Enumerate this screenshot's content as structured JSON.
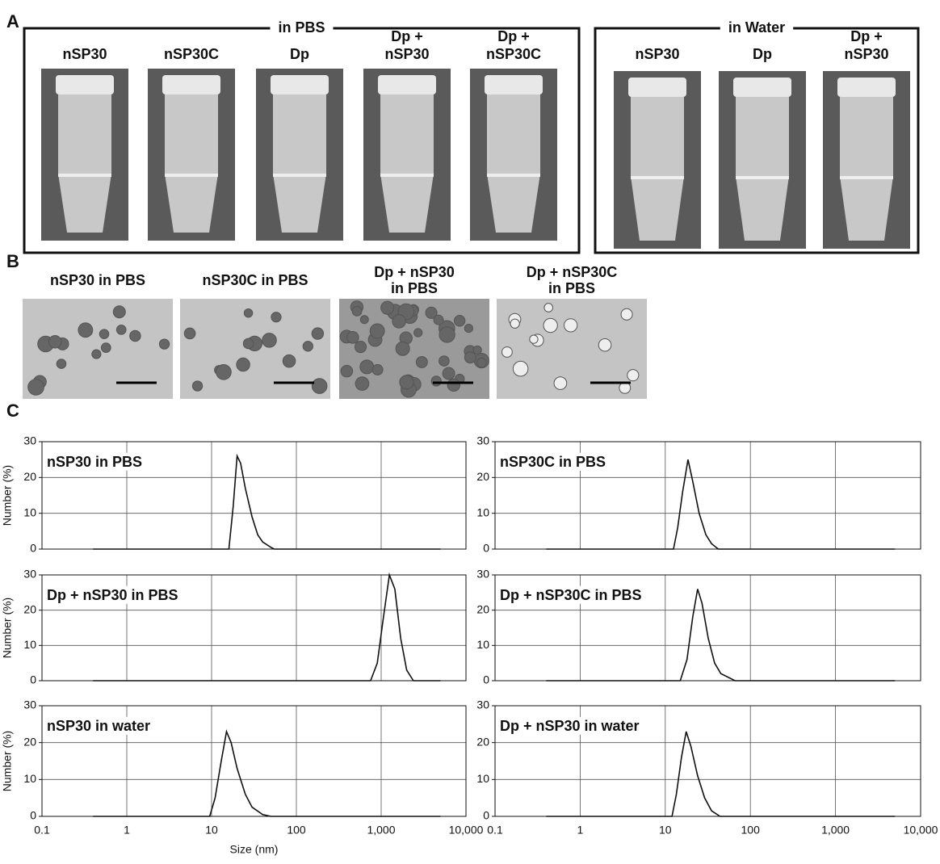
{
  "panel_a": {
    "label": "A",
    "groups": [
      {
        "title": "in PBS",
        "columns": [
          [
            "nSP30"
          ],
          [
            "nSP30C"
          ],
          [
            "Dp"
          ],
          [
            "Dp +",
            "nSP30"
          ],
          [
            "Dp +",
            "nSP30C"
          ]
        ]
      },
      {
        "title": "in Water",
        "columns": [
          [
            "nSP30"
          ],
          [
            "Dp"
          ],
          [
            "Dp +",
            "nSP30"
          ]
        ]
      }
    ]
  },
  "panel_b": {
    "label": "B",
    "images": [
      [
        "nSP30 in PBS"
      ],
      [
        "nSP30C in PBS"
      ],
      [
        "Dp + nSP30",
        "in PBS"
      ],
      [
        "Dp + nSP30C",
        "in PBS"
      ]
    ]
  },
  "panel_c": {
    "label": "C"
  },
  "chart_data": [
    {
      "type": "line",
      "title": "nSP30 in PBS",
      "ylabel": "Number (%)",
      "x": [
        0.4,
        16,
        18,
        20,
        22,
        25,
        30,
        35,
        40,
        50,
        55,
        5000
      ],
      "values": [
        0,
        0,
        12,
        26,
        24,
        17,
        9,
        4,
        2,
        0.5,
        0,
        0
      ],
      "color": "#111",
      "xscale": "log",
      "xlim": [
        0.1,
        10000
      ],
      "ylim": [
        0,
        30
      ],
      "xticks": [
        0.1,
        1,
        10,
        100,
        1000,
        10000
      ],
      "yticks": [
        0,
        10,
        20,
        30
      ],
      "grid": true,
      "xtick_labels": false
    },
    {
      "type": "line",
      "title": "nSP30C in PBS",
      "x": [
        0.4,
        12.5,
        14,
        16,
        18.5,
        21,
        25,
        30,
        35,
        42,
        5000
      ],
      "values": [
        0,
        0,
        6,
        16,
        25,
        19,
        10,
        4,
        1.5,
        0,
        0
      ],
      "color": "#111",
      "xscale": "log",
      "xlim": [
        0.1,
        10000
      ],
      "ylim": [
        0,
        30
      ],
      "xticks": [
        0.1,
        1,
        10,
        100,
        1000,
        10000
      ],
      "yticks": [
        0,
        10,
        20,
        30
      ],
      "grid": true,
      "xtick_labels": false
    },
    {
      "type": "line",
      "title": "Dp + nSP30 in PBS",
      "ylabel": "Number (%)",
      "x": [
        0.4,
        750,
        900,
        1050,
        1250,
        1450,
        1700,
        2000,
        2400,
        5000
      ],
      "values": [
        0,
        0,
        5,
        17,
        30,
        26,
        12,
        3,
        0,
        0
      ],
      "color": "#111",
      "xscale": "log",
      "xlim": [
        0.1,
        10000
      ],
      "ylim": [
        0,
        30
      ],
      "xticks": [
        0.1,
        1,
        10,
        100,
        1000,
        10000
      ],
      "yticks": [
        0,
        10,
        20,
        30
      ],
      "grid": true,
      "xtick_labels": false
    },
    {
      "type": "line",
      "title": "Dp + nSP30C in PBS",
      "x": [
        0.4,
        15,
        18,
        21,
        24,
        27,
        32,
        38,
        45,
        66,
        5000
      ],
      "values": [
        0,
        0,
        6,
        18,
        26,
        22,
        12,
        5,
        2,
        0,
        0
      ],
      "color": "#111",
      "xscale": "log",
      "xlim": [
        0.1,
        10000
      ],
      "ylim": [
        0,
        30
      ],
      "xticks": [
        0.1,
        1,
        10,
        100,
        1000,
        10000
      ],
      "yticks": [
        0,
        10,
        20,
        30
      ],
      "grid": true,
      "xtick_labels": false
    },
    {
      "type": "line",
      "title": "nSP30 in water",
      "ylabel": "Number (%)",
      "xlabel": "Size (nm)",
      "x": [
        0.4,
        9.5,
        11,
        13,
        15,
        17,
        20,
        25,
        30,
        40,
        50,
        5000
      ],
      "values": [
        0,
        0,
        5,
        15,
        23,
        20,
        13,
        6,
        2.5,
        0.5,
        0,
        0
      ],
      "color": "#111",
      "xscale": "log",
      "xlim": [
        0.1,
        10000
      ],
      "ylim": [
        0,
        30
      ],
      "xticks": [
        0.1,
        1,
        10,
        100,
        {
          "value": 1000,
          "label": "1,000"
        },
        {
          "value": 10000,
          "label": "10,000"
        }
      ],
      "yticks": [
        0,
        10,
        20,
        30
      ],
      "grid": true,
      "xtick_labels": true
    },
    {
      "type": "line",
      "title": "Dp + nSP30 in water",
      "x": [
        0.4,
        12,
        13.5,
        15.5,
        17.6,
        20,
        24,
        29,
        35,
        44,
        5000
      ],
      "values": [
        0,
        0,
        6,
        16,
        23,
        19,
        11,
        5,
        1.5,
        0,
        0
      ],
      "color": "#111",
      "xscale": "log",
      "xlim": [
        0.1,
        10000
      ],
      "ylim": [
        0,
        30
      ],
      "xticks": [
        0.1,
        1,
        10,
        100,
        {
          "value": 1000,
          "label": "1,000"
        },
        {
          "value": 10000,
          "label": "10,000"
        }
      ],
      "yticks": [
        0,
        10,
        20,
        30
      ],
      "grid": true,
      "xtick_labels": true
    }
  ]
}
